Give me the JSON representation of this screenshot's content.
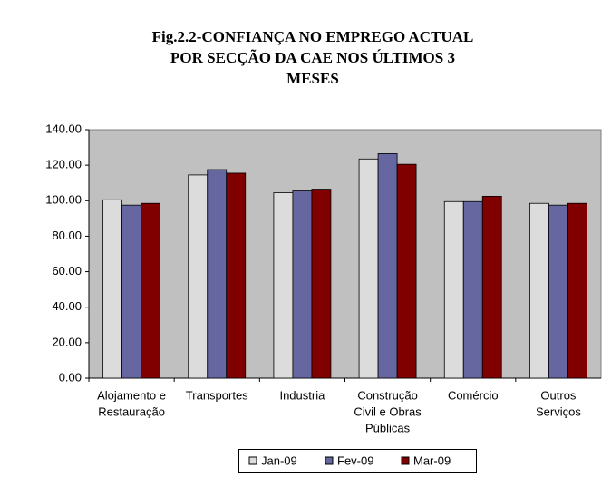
{
  "chart_data": {
    "type": "bar",
    "title": [
      "Fig.2.2-CONFIANÇA NO EMPREGO ACTUAL",
      "POR SECÇÃO DA CAE NOS ÚLTIMOS 3",
      "MESES"
    ],
    "categories": [
      [
        "Alojamento e",
        "Restauração"
      ],
      [
        "Transportes"
      ],
      [
        "Industria"
      ],
      [
        "Construção",
        "Civil e Obras",
        "Públicas"
      ],
      [
        "Comércio"
      ],
      [
        "Outros",
        "Serviços"
      ]
    ],
    "series": [
      {
        "name": "Jan-09",
        "color": "#dcdcdc",
        "values": [
          100.5,
          114.5,
          104.5,
          123.5,
          99.5,
          98.5
        ]
      },
      {
        "name": "Fev-09",
        "color": "#6666a0",
        "values": [
          97.5,
          117.5,
          105.5,
          126.5,
          99.5,
          97.5
        ]
      },
      {
        "name": "Mar-09",
        "color": "#800000",
        "values": [
          98.5,
          115.5,
          106.5,
          120.5,
          102.5,
          98.5
        ]
      }
    ],
    "ylim": [
      0,
      140
    ],
    "yticks": [
      {
        "value": 0,
        "label": "0.00"
      },
      {
        "value": 20,
        "label": "20.00"
      },
      {
        "value": 40,
        "label": "40.00"
      },
      {
        "value": 60,
        "label": "60.00"
      },
      {
        "value": 80,
        "label": "80.00"
      },
      {
        "value": 100,
        "label": "100.00"
      },
      {
        "value": 120,
        "label": "120.00"
      },
      {
        "value": 140,
        "label": "140.00"
      }
    ],
    "grid": false,
    "legend": "bottom"
  }
}
